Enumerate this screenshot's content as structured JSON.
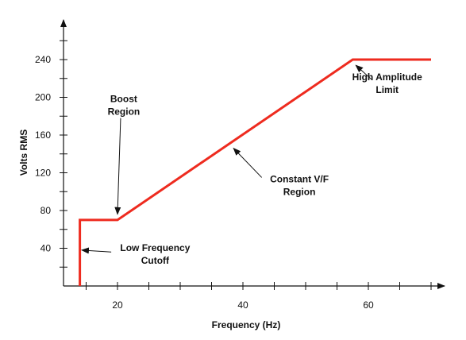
{
  "chart_data": {
    "type": "line",
    "xlabel": "Frequency (Hz)",
    "ylabel": "Volts RMS",
    "xlim": [
      10,
      72
    ],
    "ylim": [
      0,
      270
    ],
    "x_ticks": [
      20,
      40,
      60
    ],
    "y_ticks": [
      40,
      80,
      120,
      160,
      200,
      240
    ],
    "x_minor_step": 5,
    "y_minor_step": 20,
    "grid": false,
    "line_color": "#ee2b1f",
    "axis_color": "#111111",
    "series": [
      {
        "points": [
          {
            "x": 14,
            "y": 0
          },
          {
            "x": 14,
            "y": 70
          },
          {
            "x": 20,
            "y": 70
          },
          {
            "x": 57.5,
            "y": 240
          },
          {
            "x": 70,
            "y": 240
          }
        ]
      }
    ],
    "annotations": [
      {
        "lines": [
          "Boost",
          "Region"
        ],
        "label_x": 21,
        "label_y": 195,
        "arrow_to_x": 20,
        "arrow_to_y": 76,
        "arrow_from_x": 20.5,
        "arrow_from_y": 178
      },
      {
        "lines": [
          "Constant V/F",
          "Region"
        ],
        "label_x": 49,
        "label_y": 110,
        "arrow_to_x": 38.5,
        "arrow_to_y": 146,
        "arrow_from_x": 43,
        "arrow_from_y": 115
      },
      {
        "lines": [
          "High Amplitude",
          "Limit"
        ],
        "label_x": 63,
        "label_y": 218,
        "arrow_to_x": 58,
        "arrow_to_y": 234,
        "arrow_from_x": 60.5,
        "arrow_from_y": 219
      },
      {
        "lines": [
          "Low Frequency",
          "Cutoff"
        ],
        "label_x": 26,
        "label_y": 37,
        "arrow_to_x": 14.3,
        "arrow_to_y": 38,
        "arrow_from_x": 19,
        "arrow_from_y": 36
      }
    ]
  }
}
